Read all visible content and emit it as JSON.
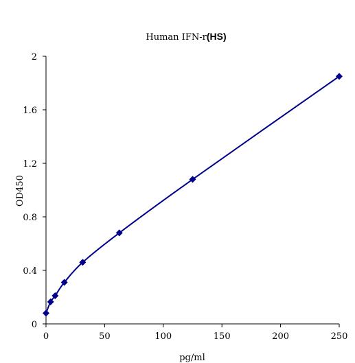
{
  "chart_data": {
    "type": "scatter",
    "title_part1": "Human IFN-r",
    "title_part2": "(HS)",
    "xlabel": "pg/ml",
    "ylabel": "OD450",
    "xlim": [
      0,
      250
    ],
    "ylim": [
      0,
      2
    ],
    "xticks": [
      0,
      50,
      100,
      150,
      200,
      250
    ],
    "yticks": [
      0,
      0.4,
      0.8,
      1.2,
      1.6,
      2
    ],
    "xtick_labels": [
      "0",
      "50",
      "100",
      "150",
      "200",
      "250"
    ],
    "ytick_labels": [
      "0",
      "0.4",
      "0.8",
      "1.2",
      "1.6",
      "2"
    ],
    "grid": false,
    "marker_color": "#00008B",
    "line_color": "#00008B",
    "series": [
      {
        "x": [
          0,
          3.9,
          7.8,
          15.6,
          31.25,
          62.5,
          125,
          250
        ],
        "y": [
          0.08,
          0.165,
          0.21,
          0.31,
          0.46,
          0.68,
          1.08,
          1.85
        ]
      }
    ]
  }
}
